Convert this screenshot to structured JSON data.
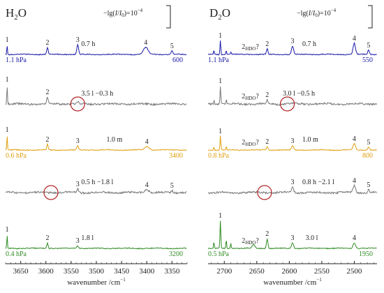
{
  "chart_data": [
    {
      "type": "line",
      "title": "H2O",
      "title_main": "H",
      "title_sub": "2",
      "title_tail": "O",
      "scale_label_prefix": "−lg(",
      "scale_label_i": "I",
      "scale_label_mid": "/",
      "scale_label_i0": "I",
      "scale_label_i0_sub": "0",
      "scale_label_suffix": ")=10",
      "scale_label_exp": "−4",
      "xlabel": "wavenumber /cm",
      "xlabel_exp": "−1",
      "xlim": [
        3680,
        3320
      ],
      "xticks": [
        {
          "value": 3650,
          "label": "3650"
        },
        {
          "value": 3600,
          "label": "3600"
        },
        {
          "value": 3550,
          "label": "3550"
        },
        {
          "value": 3500,
          "label": "3500"
        },
        {
          "value": 3450,
          "label": "3450"
        },
        {
          "value": 3400,
          "label": "3400"
        },
        {
          "value": 3350,
          "label": "3350"
        }
      ],
      "series": [
        {
          "color": "#1a1aa8",
          "left_label": "1.1 hPa",
          "right_label": "600",
          "annotation": "0.7 h",
          "annotation_x": 3530,
          "peaks": [
            {
              "label": "1",
              "x": 3677,
              "height": 14,
              "width": 0.9
            },
            {
              "label": "2",
              "x": 3597,
              "height": 10,
              "width": 2.0
            },
            {
              "label": "3",
              "x": 3537,
              "height": 14,
              "width": 2.4
            },
            {
              "label": "4",
              "x": 3402,
              "height": 10,
              "width": 6.5
            },
            {
              "label": "5",
              "x": 3350,
              "height": 5,
              "width": 2.5
            }
          ]
        },
        {
          "color": "#777777",
          "annotation": "3.5 l −0.3 h",
          "annotation_x": 3530,
          "circle_x": 3537,
          "peaks": [
            {
              "label": "1",
              "x": 3677,
              "height": 28,
              "width": 0.9
            },
            {
              "label": "2",
              "x": 3597,
              "height": 10,
              "width": 2.0
            },
            {
              "label": "",
              "x": 3537,
              "height": 3,
              "width": 2.4
            }
          ]
        },
        {
          "color": "#e0a010",
          "left_label": "0.6 hPa",
          "right_label": "3400",
          "annotation": "1.0 m",
          "annotation_x": 3480,
          "peaks": [
            {
              "label": "1",
              "x": 3677,
              "height": 22,
              "width": 0.9
            },
            {
              "label": "2",
              "x": 3597,
              "height": 8,
              "width": 2.0
            },
            {
              "label": "3",
              "x": 3537,
              "height": 6,
              "width": 2.4
            },
            {
              "label": "4",
              "x": 3400,
              "height": 5,
              "width": 6.5
            }
          ]
        },
        {
          "color": "#777777",
          "annotation": "0.5 h −1.8 l",
          "annotation_x": 3530,
          "circle_x": 3590,
          "peaks": [
            {
              "label": "3",
              "x": 3537,
              "height": 5,
              "width": 2.4
            },
            {
              "label": "4",
              "x": 3400,
              "height": 4,
              "width": 6.5
            },
            {
              "label": "5",
              "x": 3350,
              "height": 3,
              "width": 2.5
            }
          ]
        },
        {
          "color": "#2e8b22",
          "left_label": "0.4 hPa",
          "right_label": "3200",
          "annotation": "1.8 l",
          "annotation_x": 3530,
          "peaks": [
            {
              "label": "1",
              "x": 3677,
              "height": 20,
              "width": 0.9
            },
            {
              "label": "2",
              "x": 3597,
              "height": 8,
              "width": 2.0
            },
            {
              "label": "3",
              "x": 3537,
              "height": 4,
              "width": 2.4
            }
          ]
        }
      ]
    },
    {
      "type": "line",
      "title": "D2O",
      "title_main": "D",
      "title_sub": "2",
      "title_tail": "O",
      "scale_label_prefix": "−lg(",
      "scale_label_i": "I",
      "scale_label_mid": "/",
      "scale_label_i0": "I",
      "scale_label_i0_sub": "0",
      "scale_label_suffix": ")=10",
      "scale_label_exp": "−4",
      "xlabel": "wavenumber /cm",
      "xlabel_exp": "−1",
      "xlim": [
        2725,
        2465
      ],
      "xticks": [
        {
          "value": 2700,
          "label": "2700"
        },
        {
          "value": 2650,
          "label": "2650"
        },
        {
          "value": 2600,
          "label": "2600"
        },
        {
          "value": 2550,
          "label": "2550"
        },
        {
          "value": 2500,
          "label": "2500"
        }
      ],
      "series": [
        {
          "color": "#1a1aa8",
          "left_label": "1.1 hPa",
          "right_label": "550",
          "annotation": "0.7 h",
          "annotation_x": 2580,
          "hdo": true,
          "peaks": [
            {
              "label": "1",
              "x": 2706,
              "height": 20,
              "width": 0.9
            },
            {
              "label": "2",
              "x": 2634,
              "height": 8,
              "width": 1.6
            },
            {
              "label": "3",
              "x": 2595,
              "height": 12,
              "width": 2.2
            },
            {
              "label": "4",
              "x": 2500,
              "height": 16,
              "width": 2.6
            },
            {
              "label": "5",
              "x": 2478,
              "height": 6,
              "width": 1.8
            },
            {
              "label": "",
              "x": 2716,
              "height": 6,
              "width": 0.8
            },
            {
              "label": "",
              "x": 2697,
              "height": 6,
              "width": 0.8
            },
            {
              "label": "",
              "x": 2690,
              "height": 4,
              "width": 0.8
            }
          ]
        },
        {
          "color": "#777777",
          "annotation": "3.0 l −0.5 h",
          "annotation_x": 2610,
          "hdo": true,
          "circle_x": 2603,
          "peaks": [
            {
              "label": "1",
              "x": 2706,
              "height": 26,
              "width": 0.9
            },
            {
              "label": "2",
              "x": 2634,
              "height": 6,
              "width": 1.6
            },
            {
              "label": "",
              "x": 2716,
              "height": 6,
              "width": 0.8
            },
            {
              "label": "",
              "x": 2697,
              "height": 6,
              "width": 0.8
            }
          ]
        },
        {
          "color": "#e0a010",
          "left_label": "0.8 hPa",
          "right_label": "800",
          "annotation": "1.0 m",
          "annotation_x": 2580,
          "hdo": true,
          "peaks": [
            {
              "label": "1",
              "x": 2706,
              "height": 20,
              "width": 0.9
            },
            {
              "label": "2",
              "x": 2634,
              "height": 5,
              "width": 1.6
            },
            {
              "label": "3",
              "x": 2595,
              "height": 6,
              "width": 2.2
            },
            {
              "label": "4",
              "x": 2500,
              "height": 9,
              "width": 2.6
            },
            {
              "label": "5",
              "x": 2478,
              "height": 4,
              "width": 1.8
            },
            {
              "label": "",
              "x": 2716,
              "height": 5,
              "width": 0.8
            },
            {
              "label": "",
              "x": 2697,
              "height": 5,
              "width": 0.8
            }
          ]
        },
        {
          "color": "#777777",
          "annotation": "0.8 h −2.1 l",
          "annotation_x": 2580,
          "circle_x": 2638,
          "peaks": [
            {
              "label": "3",
              "x": 2595,
              "height": 8,
              "width": 2.2
            },
            {
              "label": "4",
              "x": 2500,
              "height": 10,
              "width": 2.6
            },
            {
              "label": "5",
              "x": 2478,
              "height": 4,
              "width": 1.8
            }
          ]
        },
        {
          "color": "#2e8b22",
          "left_label": "0.5 hPa",
          "right_label": "1950",
          "annotation": "3.0 l",
          "annotation_x": 2575,
          "hdo": true,
          "peaks": [
            {
              "label": "1",
              "x": 2706,
              "height": 40,
              "width": 0.9
            },
            {
              "label": "2",
              "x": 2634,
              "height": 14,
              "width": 1.6
            },
            {
              "label": "3",
              "x": 2595,
              "height": 8,
              "width": 2.2
            },
            {
              "label": "4",
              "x": 2500,
              "height": 8,
              "width": 2.6
            },
            {
              "label": "",
              "x": 2716,
              "height": 10,
              "width": 0.8
            },
            {
              "label": "",
              "x": 2697,
              "height": 12,
              "width": 0.8
            },
            {
              "label": "",
              "x": 2690,
              "height": 8,
              "width": 0.8
            },
            {
              "label": "",
              "x": 2655,
              "height": 5,
              "width": 3.0
            }
          ]
        }
      ]
    }
  ],
  "hdo_label_main": "2",
  "hdo_label_sub": "HDO",
  "hdo_label_q": "?",
  "colors": {
    "circle": "#b02020",
    "axis": "#222222"
  }
}
